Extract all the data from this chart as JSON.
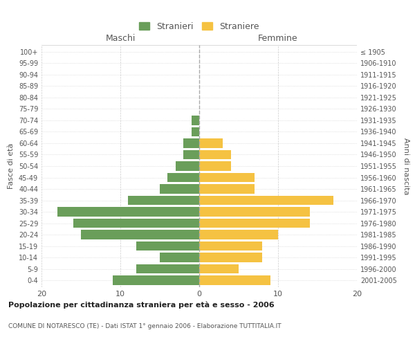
{
  "age_groups": [
    "0-4",
    "5-9",
    "10-14",
    "15-19",
    "20-24",
    "25-29",
    "30-34",
    "35-39",
    "40-44",
    "45-49",
    "50-54",
    "55-59",
    "60-64",
    "65-69",
    "70-74",
    "75-79",
    "80-84",
    "85-89",
    "90-94",
    "95-99",
    "100+"
  ],
  "birth_years": [
    "2001-2005",
    "1996-2000",
    "1991-1995",
    "1986-1990",
    "1981-1985",
    "1976-1980",
    "1971-1975",
    "1966-1970",
    "1961-1965",
    "1956-1960",
    "1951-1955",
    "1946-1950",
    "1941-1945",
    "1936-1940",
    "1931-1935",
    "1926-1930",
    "1921-1925",
    "1916-1920",
    "1911-1915",
    "1906-1910",
    "≤ 1905"
  ],
  "maschi": [
    11,
    8,
    5,
    8,
    15,
    16,
    18,
    9,
    5,
    4,
    3,
    2,
    2,
    1,
    1,
    0,
    0,
    0,
    0,
    0,
    0
  ],
  "femmine": [
    9,
    5,
    8,
    8,
    10,
    14,
    14,
    17,
    7,
    7,
    4,
    4,
    3,
    0,
    0,
    0,
    0,
    0,
    0,
    0,
    0
  ],
  "color_maschi": "#6a9e5a",
  "color_femmine": "#f5c242",
  "title_bold": "Popolazione per cittadinanza straniera per età e sesso - 2006",
  "subtitle": "COMUNE DI NOTARESCO (TE) - Dati ISTAT 1° gennaio 2006 - Elaborazione TUTTITALIA.IT",
  "xlabel_left": "Maschi",
  "xlabel_right": "Femmine",
  "ylabel_left": "Fasce di età",
  "ylabel_right": "Anni di nascita",
  "legend_maschi": "Stranieri",
  "legend_femmine": "Straniere",
  "xlim": 20,
  "background_color": "#ffffff",
  "grid_color": "#cccccc"
}
